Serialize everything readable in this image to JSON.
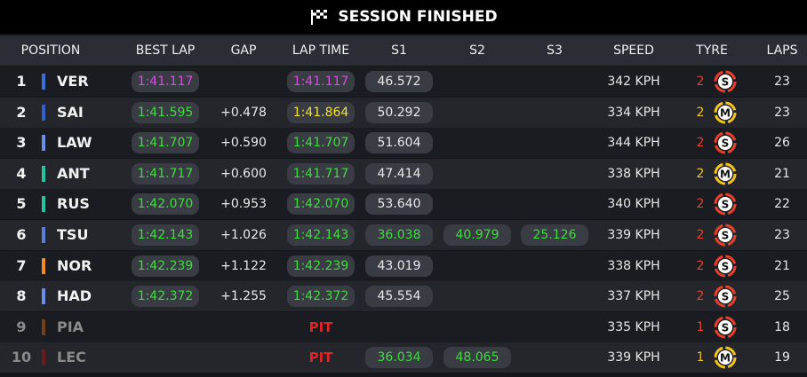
{
  "header": {
    "title": "SESSION FINISHED"
  },
  "table": {
    "columns": [
      "POSITION",
      "BEST LAP",
      "GAP",
      "LAP TIME",
      "S1",
      "S2",
      "S3",
      "SPEED",
      "TYRE",
      "LAPS"
    ],
    "rows": [
      {
        "position": "1",
        "driver": "VER",
        "team_color": "#3b6fd9",
        "best_lap": {
          "text": "1:41.117",
          "color": "#d84be0"
        },
        "lap_time": {
          "text": "1:41.117",
          "color": "#d84be0"
        },
        "s1": {
          "text": "46.572",
          "color": "#e8e8e8"
        },
        "speed": "342 KPH",
        "tyre_age": "2",
        "tyre": {
          "text": "S",
          "color": "#e8402a"
        },
        "laps": "23"
      },
      {
        "position": "2",
        "driver": "SAI",
        "team_color": "#2f5fd0",
        "best_lap": {
          "text": "1:41.595",
          "color": "#3ddc3d"
        },
        "gap": "+0.478",
        "lap_time": {
          "text": "1:41.864",
          "color": "#f0e030"
        },
        "s1": {
          "text": "50.292",
          "color": "#e8e8e8"
        },
        "speed": "334 KPH",
        "tyre_age": "2",
        "tyre": {
          "text": "M",
          "color": "#f2c41c"
        },
        "laps": "23"
      },
      {
        "position": "3",
        "driver": "LAW",
        "team_color": "#6c8ee8",
        "best_lap": {
          "text": "1:41.707",
          "color": "#3ddc3d"
        },
        "gap": "+0.590",
        "lap_time": {
          "text": "1:41.707",
          "color": "#3ddc3d"
        },
        "s1": {
          "text": "51.604",
          "color": "#e8e8e8"
        },
        "speed": "344 KPH",
        "tyre_age": "2",
        "tyre": {
          "text": "S",
          "color": "#e8402a"
        },
        "laps": "26"
      },
      {
        "position": "4",
        "driver": "ANT",
        "team_color": "#23c4a0",
        "best_lap": {
          "text": "1:41.717",
          "color": "#3ddc3d"
        },
        "gap": "+0.600",
        "lap_time": {
          "text": "1:41.717",
          "color": "#3ddc3d"
        },
        "s1": {
          "text": "47.414",
          "color": "#e8e8e8"
        },
        "speed": "338 KPH",
        "tyre_age": "2",
        "tyre": {
          "text": "M",
          "color": "#f2c41c"
        },
        "laps": "21"
      },
      {
        "position": "5",
        "driver": "RUS",
        "team_color": "#23c4a0",
        "best_lap": {
          "text": "1:42.070",
          "color": "#3ddc3d"
        },
        "gap": "+0.953",
        "lap_time": {
          "text": "1:42.070",
          "color": "#3ddc3d"
        },
        "s1": {
          "text": "53.640",
          "color": "#e8e8e8"
        },
        "speed": "340 KPH",
        "tyre_age": "2",
        "tyre": {
          "text": "S",
          "color": "#e8402a"
        },
        "laps": "22"
      },
      {
        "position": "6",
        "driver": "TSU",
        "team_color": "#5a7fd8",
        "best_lap": {
          "text": "1:42.143",
          "color": "#3ddc3d"
        },
        "gap": "+1.026",
        "lap_time": {
          "text": "1:42.143",
          "color": "#3ddc3d"
        },
        "s1": {
          "text": "36.038",
          "color": "#3ddc3d"
        },
        "s2": {
          "text": "40.979",
          "color": "#3ddc3d"
        },
        "s3": {
          "text": "25.126",
          "color": "#3ddc3d"
        },
        "speed": "339 KPH",
        "tyre_age": "2",
        "tyre": {
          "text": "S",
          "color": "#e8402a"
        },
        "laps": "23"
      },
      {
        "position": "7",
        "driver": "NOR",
        "team_color": "#f08a24",
        "best_lap": {
          "text": "1:42.239",
          "color": "#3ddc3d"
        },
        "gap": "+1.122",
        "lap_time": {
          "text": "1:42.239",
          "color": "#3ddc3d"
        },
        "s1": {
          "text": "43.019",
          "color": "#e8e8e8"
        },
        "speed": "338 KPH",
        "tyre_age": "2",
        "tyre": {
          "text": "S",
          "color": "#e8402a"
        },
        "laps": "21"
      },
      {
        "position": "8",
        "driver": "HAD",
        "team_color": "#6c8ee8",
        "best_lap": {
          "text": "1:42.372",
          "color": "#3ddc3d"
        },
        "gap": "+1.255",
        "lap_time": {
          "text": "1:42.372",
          "color": "#3ddc3d"
        },
        "s1": {
          "text": "45.554",
          "color": "#e8e8e8"
        },
        "speed": "337 KPH",
        "tyre_age": "2",
        "tyre": {
          "text": "S",
          "color": "#e8402a"
        },
        "laps": "25"
      },
      {
        "position": "9",
        "driver": "PIA",
        "team_color": "#8a4a1a",
        "dim": true,
        "lap_time": {
          "text": "PIT",
          "color": "#e02424"
        },
        "speed": "335 KPH",
        "tyre_age": "1",
        "tyre": {
          "text": "S",
          "color": "#e8402a"
        },
        "laps": "18"
      },
      {
        "position": "10",
        "driver": "LEC",
        "team_color": "#7a1a1a",
        "dim": true,
        "lap_time": {
          "text": "PIT",
          "color": "#e02424"
        },
        "s1": {
          "text": "36.034",
          "color": "#3ddc3d"
        },
        "s2": {
          "text": "48.065",
          "color": "#3ddc3d"
        },
        "speed": "339 KPH",
        "tyre_age": "1",
        "tyre": {
          "text": "M",
          "color": "#f2c41c"
        },
        "laps": "19"
      }
    ]
  }
}
